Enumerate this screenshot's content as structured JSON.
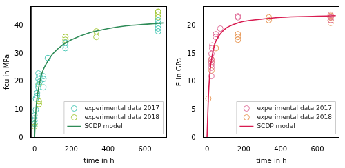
{
  "chart_data": [
    {
      "type": "scatter",
      "x_label": "time in h",
      "y_label": "fcu in MPa",
      "xlim": [
        -20,
        720
      ],
      "xticks": [
        0,
        200,
        400,
        600
      ],
      "ylim": [
        0,
        47
      ],
      "yticks": [
        0,
        10,
        20,
        30,
        40
      ],
      "grid": false,
      "legend": "lower right",
      "series": [
        {
          "name": "experimental data 2017",
          "color": "#4fc9b8",
          "type": "scatter",
          "marker": "open_circle",
          "x": [
            0,
            0,
            0,
            0,
            7,
            7,
            14,
            14,
            21,
            21,
            21,
            21,
            28,
            28,
            48,
            48,
            48,
            72,
            168,
            168,
            168,
            672,
            672,
            672,
            672,
            672
          ],
          "values": [
            5,
            6,
            7,
            8,
            10,
            14,
            15,
            16,
            18,
            19,
            21,
            23,
            20,
            22,
            18,
            21,
            22,
            28.5,
            32,
            33,
            34,
            38,
            39,
            40,
            41,
            42
          ]
        },
        {
          "name": "experimental data 2018",
          "color": "#a5c93a",
          "type": "scatter",
          "marker": "open_circle",
          "x": [
            0,
            0,
            24,
            24,
            24,
            168,
            168,
            336,
            336,
            672,
            672,
            672,
            672
          ],
          "values": [
            4,
            5,
            12,
            13,
            19,
            35,
            36,
            36,
            38,
            43,
            44,
            45,
            45
          ]
        },
        {
          "name": "SCDP model",
          "color": "#2e8b57",
          "type": "line",
          "line_style": "solid",
          "x": [
            0,
            5,
            10,
            20,
            40,
            60,
            100,
            150,
            200,
            300,
            400,
            500,
            600,
            700
          ],
          "values": [
            0,
            7,
            12,
            17,
            23,
            26,
            30,
            33,
            35,
            37.5,
            39,
            40,
            40.5,
            41
          ]
        }
      ]
    },
    {
      "type": "scatter",
      "x_label": "time in h",
      "y_label": "E in GPa",
      "xlim": [
        -20,
        720
      ],
      "xticks": [
        0,
        200,
        400,
        600
      ],
      "ylim": [
        0,
        23.5
      ],
      "yticks": [
        0,
        5,
        10,
        15,
        20
      ],
      "grid": false,
      "legend": "lower right",
      "series": [
        {
          "name": "experimental data 2017",
          "color": "#e0709a",
          "type": "scatter",
          "marker": "open_circle",
          "x": [
            24,
            24,
            24,
            24,
            24,
            24,
            28,
            28,
            48,
            48,
            72,
            168,
            168,
            672,
            672,
            672
          ],
          "values": [
            11,
            12.5,
            13,
            13.5,
            14,
            15,
            16,
            16.5,
            18,
            18.5,
            19.5,
            21.5,
            21.7,
            21,
            21.5,
            22
          ]
        },
        {
          "name": "experimental data 2018",
          "color": "#e89a5a",
          "type": "scatter",
          "marker": "open_circle",
          "x": [
            7,
            24,
            24,
            24,
            48,
            168,
            168,
            168,
            336,
            336,
            672,
            672,
            672,
            672
          ],
          "values": [
            7,
            12,
            13.5,
            14,
            16,
            17.5,
            18,
            18.5,
            21,
            21.5,
            20.5,
            21,
            21.5,
            21.8
          ]
        },
        {
          "name": "SCDP model",
          "color": "#d81b50",
          "type": "line",
          "line_style": "solid",
          "x": [
            0,
            5,
            10,
            20,
            40,
            60,
            100,
            150,
            200,
            300,
            400,
            600,
            700
          ],
          "values": [
            0,
            5,
            9,
            13,
            16.5,
            18,
            19.5,
            20.3,
            20.8,
            21.2,
            21.5,
            21.7,
            21.8
          ]
        }
      ]
    }
  ]
}
